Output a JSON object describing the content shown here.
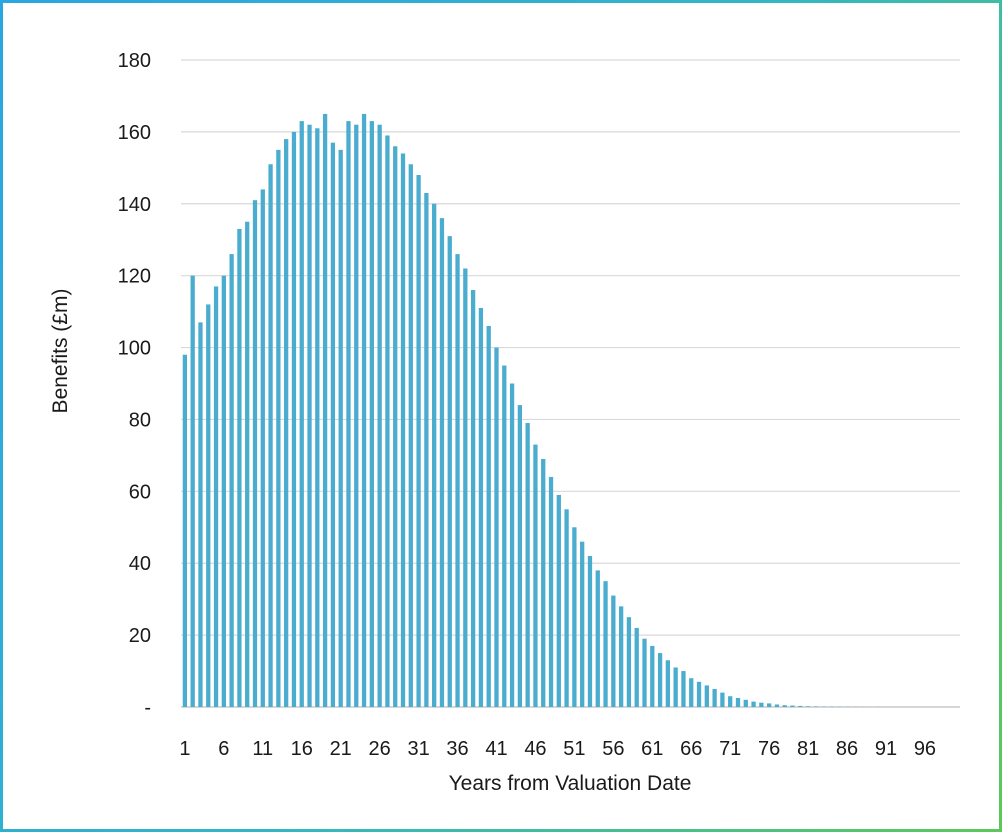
{
  "chart_data": {
    "type": "bar",
    "title": "",
    "xlabel": "Years from Valuation Date",
    "ylabel": "Benefits (£m)",
    "ylim": [
      0,
      180
    ],
    "y_ticks": [
      0,
      20,
      40,
      60,
      80,
      100,
      120,
      140,
      160,
      180
    ],
    "y_tick_labels": [
      "-",
      "20",
      "40",
      "60",
      "80",
      "100",
      "120",
      "140",
      "160",
      "180"
    ],
    "x_tick_labels": [
      "1",
      "6",
      "11",
      "16",
      "21",
      "26",
      "31",
      "36",
      "41",
      "46",
      "51",
      "56",
      "61",
      "66",
      "71",
      "76",
      "81",
      "86",
      "91",
      "96"
    ],
    "grid": true,
    "legend": "none",
    "bar_color": "#4aaccf",
    "x": [
      1,
      2,
      3,
      4,
      5,
      6,
      7,
      8,
      9,
      10,
      11,
      12,
      13,
      14,
      15,
      16,
      17,
      18,
      19,
      20,
      21,
      22,
      23,
      24,
      25,
      26,
      27,
      28,
      29,
      30,
      31,
      32,
      33,
      34,
      35,
      36,
      37,
      38,
      39,
      40,
      41,
      42,
      43,
      44,
      45,
      46,
      47,
      48,
      49,
      50,
      51,
      52,
      53,
      54,
      55,
      56,
      57,
      58,
      59,
      60,
      61,
      62,
      63,
      64,
      65,
      66,
      67,
      68,
      69,
      70,
      71,
      72,
      73,
      74,
      75,
      76,
      77,
      78,
      79,
      80,
      81,
      82,
      83,
      84,
      85,
      86,
      87,
      88,
      89,
      90,
      91,
      92,
      93,
      94,
      95,
      96,
      97,
      98,
      99,
      100
    ],
    "values": [
      98,
      120,
      107,
      112,
      117,
      120,
      126,
      133,
      135,
      141,
      144,
      151,
      155,
      158,
      160,
      163,
      162,
      161,
      165,
      157,
      155,
      163,
      162,
      165,
      163,
      162,
      159,
      156,
      154,
      151,
      148,
      143,
      140,
      136,
      131,
      126,
      122,
      116,
      111,
      106,
      100,
      95,
      90,
      84,
      79,
      73,
      69,
      64,
      59,
      55,
      50,
      46,
      42,
      38,
      35,
      31,
      28,
      25,
      22,
      19,
      17,
      15,
      13,
      11,
      10,
      8,
      7,
      6,
      5,
      4,
      3,
      2.5,
      2,
      1.5,
      1.2,
      1,
      0.7,
      0.5,
      0.4,
      0.3,
      0.2,
      0.15,
      0.1,
      0.1,
      0.08,
      0.06,
      0.05,
      0.04,
      0.03,
      0.03,
      0.02,
      0.02,
      0.02,
      0.01,
      0.01,
      0.01,
      0.01,
      0.01,
      0.01,
      0.01
    ]
  }
}
